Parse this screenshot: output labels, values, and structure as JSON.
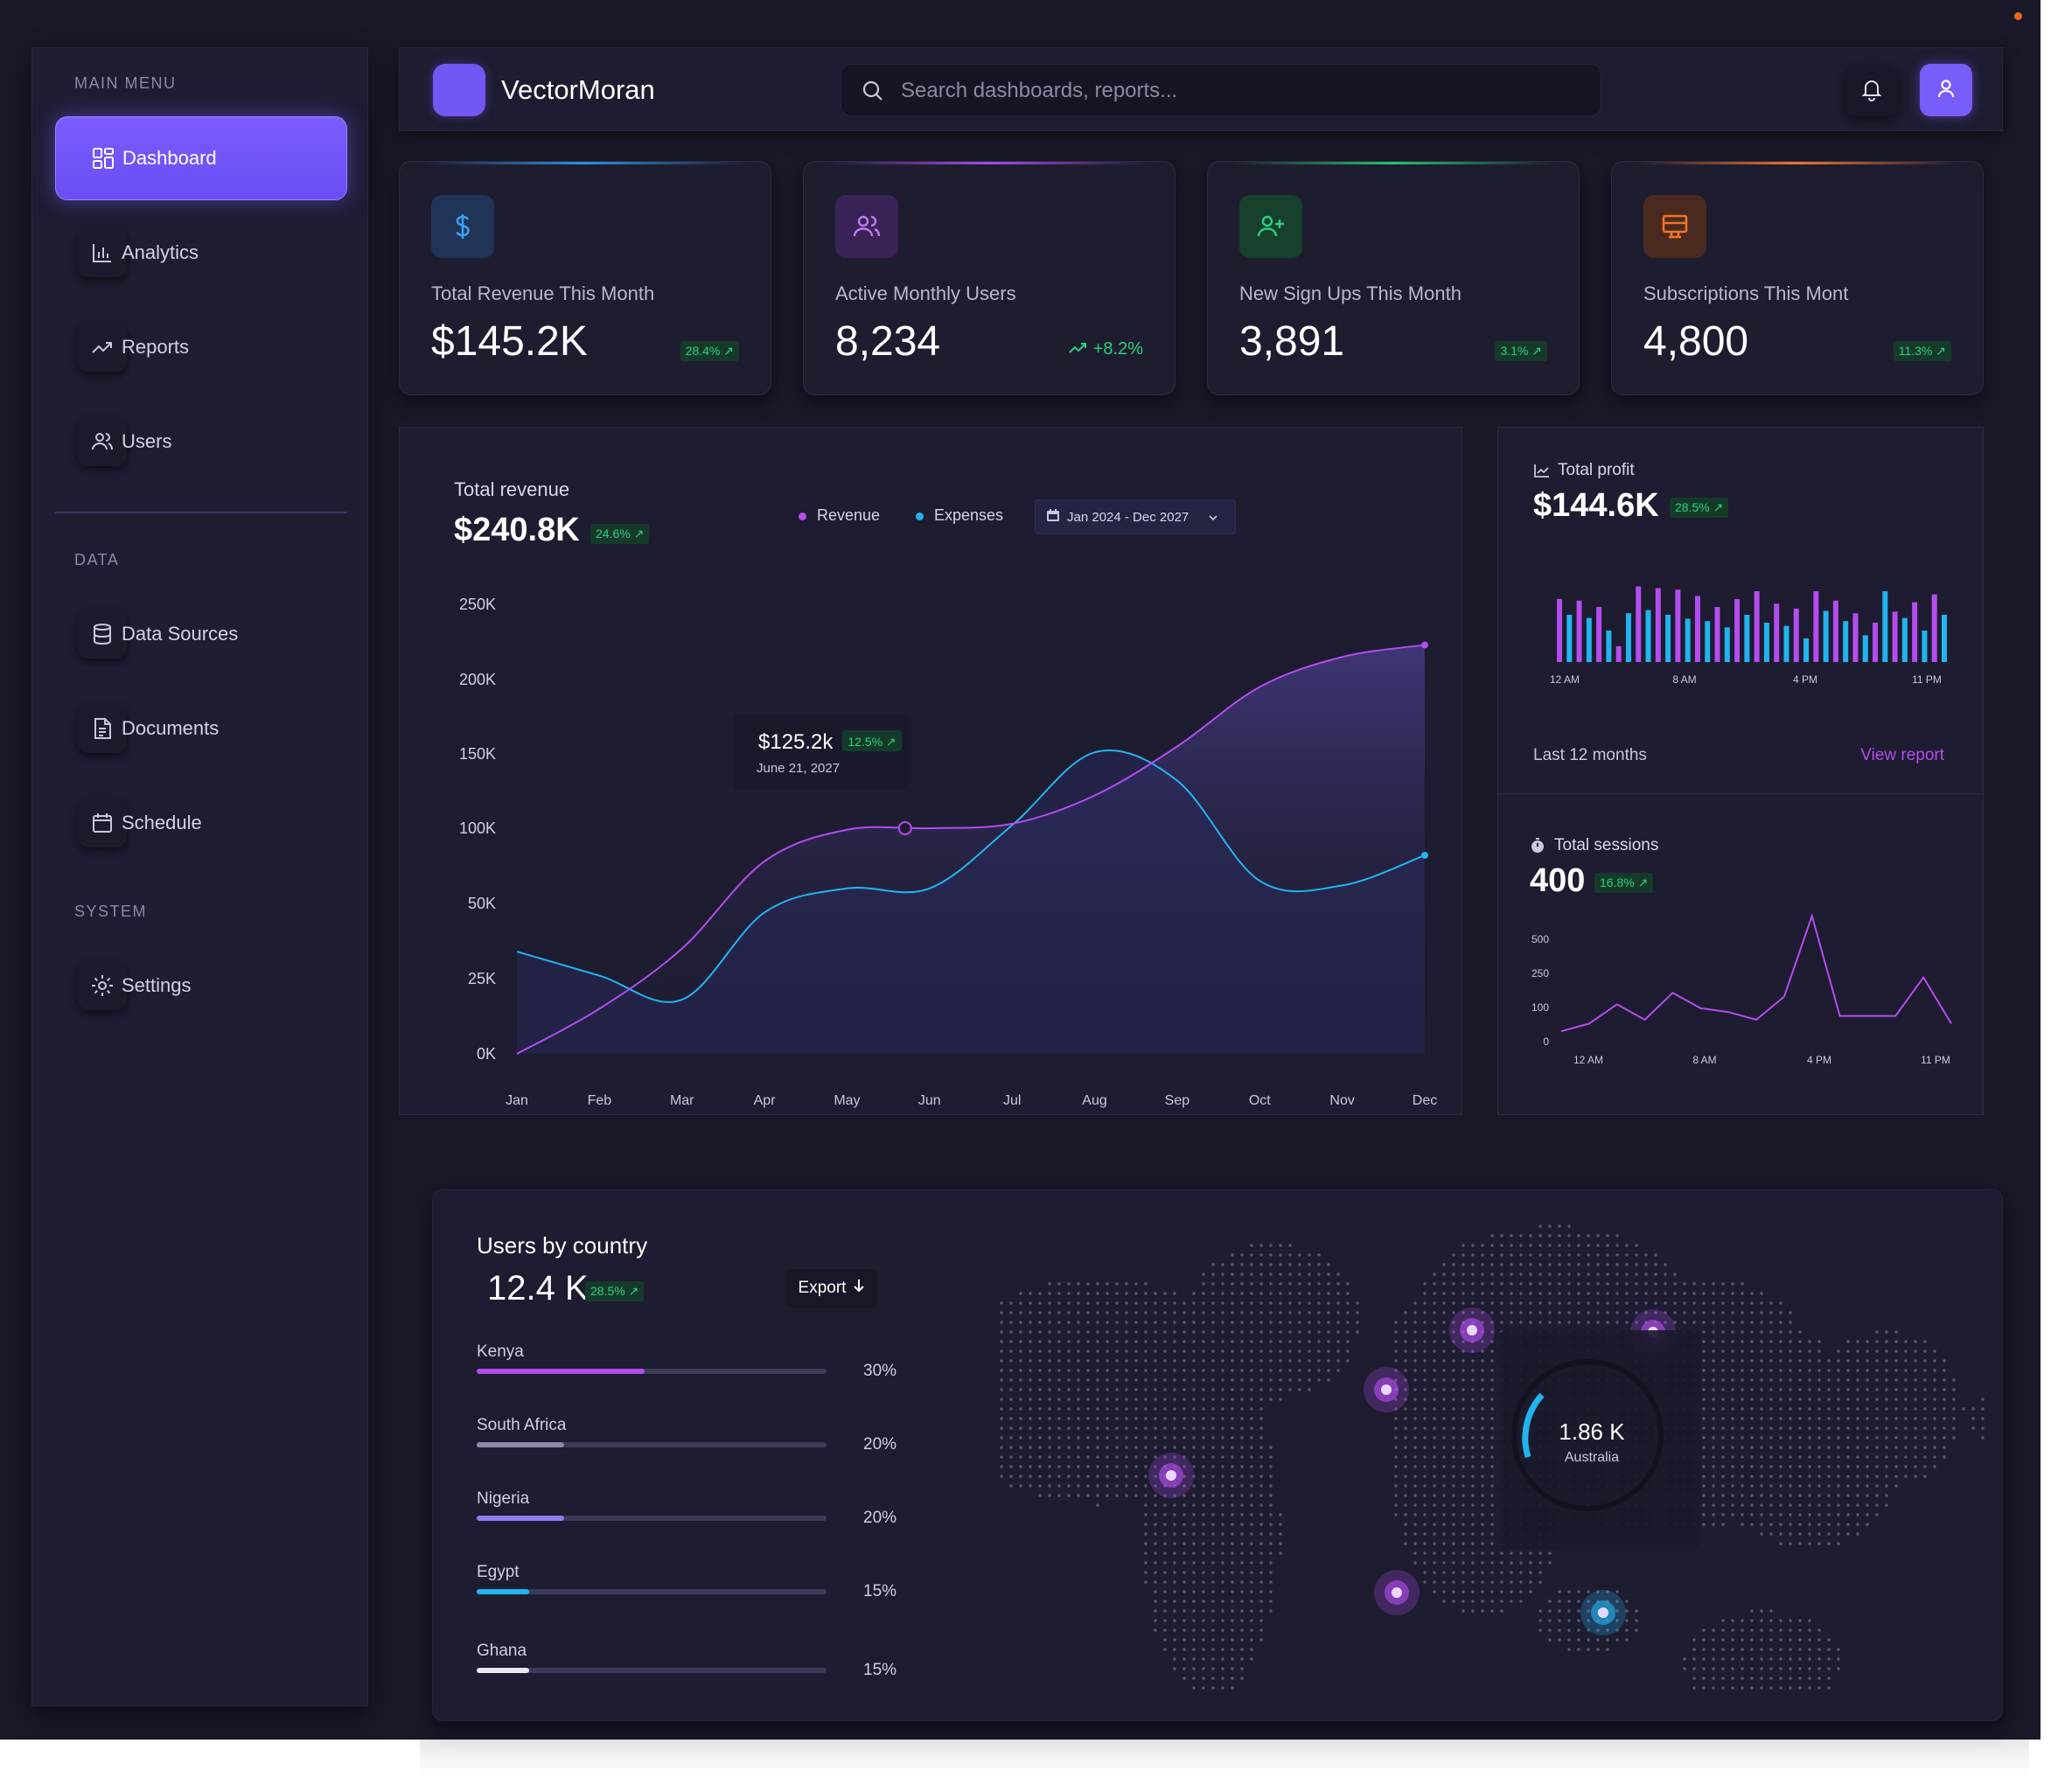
{
  "app": {
    "brand": "VectorMoran"
  },
  "search": {
    "placeholder": "Search dashboards, reports..."
  },
  "sidebar": {
    "main_menu_title": "MAIN MENU",
    "data_title": "DATA",
    "system_title": "SYSTEM",
    "items": [
      {
        "label": "Dashboard",
        "icon": "dashboard-icon",
        "active": true
      },
      {
        "label": "Analytics",
        "icon": "bar-chart-icon"
      },
      {
        "label": "Reports",
        "icon": "trending-icon"
      },
      {
        "label": "Users",
        "icon": "users-icon"
      },
      {
        "label": "Data Sources",
        "icon": "database-icon"
      },
      {
        "label": "Documents",
        "icon": "document-icon"
      },
      {
        "label": "Schedule",
        "icon": "calendar-icon"
      },
      {
        "label": "Settings",
        "icon": "gear-icon"
      }
    ]
  },
  "stats": [
    {
      "label": "Total Revenue This Month",
      "value": "$145.2K",
      "badge": "28.4% ↗",
      "icon": "dollar-icon",
      "accent": "#2f8fe0"
    },
    {
      "label": "Active Monthly Users",
      "value": "8,234",
      "trend": "+8.2%",
      "icon": "users-icon",
      "accent": "#a64be6"
    },
    {
      "label": "New Sign Ups This Month",
      "value": "3,891",
      "badge": "3.1% ↗",
      "icon": "user-plus-icon",
      "accent": "#22c46a"
    },
    {
      "label": "Subscriptions This Mont",
      "value": "4,800",
      "badge": "11.3% ↗",
      "icon": "monitor-icon",
      "accent": "#f0742a"
    }
  ],
  "revenue": {
    "title": "Total revenue",
    "total": "$240.8K",
    "badge": "24.6% ↗",
    "legend": {
      "revenue": "Revenue",
      "expenses": "Expenses"
    },
    "date_range": "Jan 2024 - Dec 2027",
    "tooltip": {
      "value": "$125.2k",
      "badge": "12.5% ↗",
      "date": "June 21, 2027"
    },
    "colors": {
      "revenue": "#b44cf0",
      "expenses": "#22b4f0"
    }
  },
  "chart_data": [
    {
      "type": "line",
      "y_ticks": [
        "250K",
        "200K",
        "150K",
        "100K",
        "50K",
        "25K",
        "0K"
      ],
      "categories": [
        "Jan",
        "Feb",
        "Mar",
        "Apr",
        "May",
        "Jun",
        "Jul",
        "Aug",
        "Sep",
        "Oct",
        "Nov",
        "Dec"
      ],
      "series": [
        {
          "name": "Revenue",
          "values": [
            0,
            15,
            35,
            78,
            99,
            100,
            103,
            122,
            155,
            195,
            215,
            223
          ]
        },
        {
          "name": "Expenses",
          "values": [
            34,
            26,
            18,
            47,
            60,
            60,
            102,
            151,
            132,
            65,
            62,
            82
          ]
        }
      ]
    },
    {
      "type": "bar",
      "title": "Total profit",
      "x_ticks": [
        "12 AM",
        "8 AM",
        "4 PM",
        "11 PM"
      ],
      "series": [
        {
          "values": [
            80,
            60,
            78,
            56,
            70,
            40,
            20,
            62,
            96,
            66,
            94,
            60,
            92,
            55,
            84,
            52,
            70,
            44,
            80,
            60,
            90,
            50,
            74,
            46,
            68,
            30,
            90,
            65,
            78,
            52,
            62,
            34,
            50,
            90,
            64,
            56,
            76,
            40,
            86,
            60
          ]
        }
      ]
    },
    {
      "type": "line",
      "title": "Total sessions",
      "y_ticks": [
        "500",
        "250",
        "100",
        "0"
      ],
      "x_ticks": [
        "12 AM",
        "8 AM",
        "4 PM",
        "11 PM"
      ],
      "series": [
        {
          "values": [
            10,
            20,
            45,
            25,
            60,
            40,
            35,
            25,
            55,
            160,
            30,
            30,
            30,
            80,
            20
          ]
        }
      ]
    }
  ],
  "profit": {
    "title": "Total profit",
    "value": "$144.6K",
    "badge": "28.5% ↗",
    "footer": "Last 12 months",
    "link": "View report"
  },
  "sessions": {
    "title": "Total sessions",
    "value": "400",
    "badge": "16.8% ↗"
  },
  "country": {
    "title": "Users by country",
    "value": "12.4 K",
    "badge": "28.5% ↗",
    "export": "Export",
    "rows": [
      {
        "name": "Kenya",
        "pct": "30%",
        "fill": 0.48,
        "color": "#b44cf0"
      },
      {
        "name": "South Africa",
        "pct": "20%",
        "fill": 0.25,
        "color": "#8a88a8"
      },
      {
        "name": "Nigeria",
        "pct": "20%",
        "fill": 0.25,
        "color": "#8c7cf0"
      },
      {
        "name": "Egypt",
        "pct": "15%",
        "fill": 0.15,
        "color": "#22b4f0"
      },
      {
        "name": "Ghana",
        "pct": "15%",
        "fill": 0.15,
        "color": "#e8e8f0"
      }
    ],
    "map_callout": {
      "value": "1.86 K",
      "label": "Australia"
    }
  }
}
